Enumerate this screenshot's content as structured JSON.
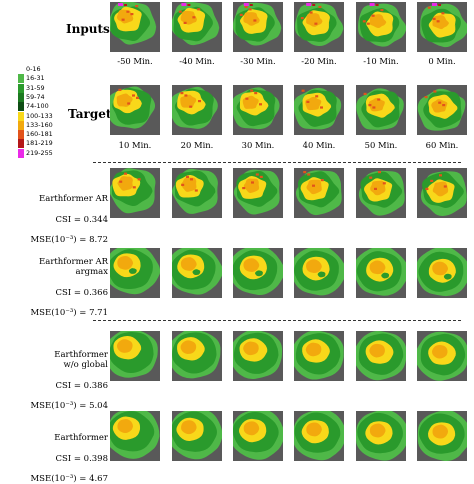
{
  "legend": [
    {
      "label": "0-16",
      "color": "#ffffff"
    },
    {
      "label": "16-31",
      "color": "#4fb848"
    },
    {
      "label": "31-59",
      "color": "#2a9a2c"
    },
    {
      "label": "59-74",
      "color": "#1c7a20"
    },
    {
      "label": "74-100",
      "color": "#0e4d14"
    },
    {
      "label": "100-133",
      "color": "#f8d81a"
    },
    {
      "label": "133-160",
      "color": "#f2a90e"
    },
    {
      "label": "160-181",
      "color": "#e2531b"
    },
    {
      "label": "181-219",
      "color": "#b41718"
    },
    {
      "label": "219-255",
      "color": "#ea2ae8"
    }
  ],
  "section_titles": {
    "inputs": "Inputs",
    "target": "Target"
  },
  "input_times": [
    "-50 Min.",
    "-40 Min.",
    "-30 Min.",
    "-20 Min.",
    "-10 Min.",
    "0 Min."
  ],
  "target_times": [
    "10 Min.",
    "20 Min.",
    "30 Min.",
    "40 Min.",
    "50 Min.",
    "60 Min."
  ],
  "methods": [
    {
      "name": "Earthformer AR",
      "csi": "CSI = 0.344",
      "mse": "MSE(10⁻³) = 8.72"
    },
    {
      "name": "Earthformer AR\nargmax",
      "csi": "CSI = 0.366",
      "mse": "MSE(10⁻³) = 7.71"
    },
    {
      "name": "Earthformer\nw/o global",
      "csi": "CSI = 0.386",
      "mse": "MSE(10⁻³) = 5.04"
    },
    {
      "name": "Earthformer",
      "csi": "CSI = 0.398",
      "mse": "MSE(10⁻³) = 4.67"
    }
  ]
}
